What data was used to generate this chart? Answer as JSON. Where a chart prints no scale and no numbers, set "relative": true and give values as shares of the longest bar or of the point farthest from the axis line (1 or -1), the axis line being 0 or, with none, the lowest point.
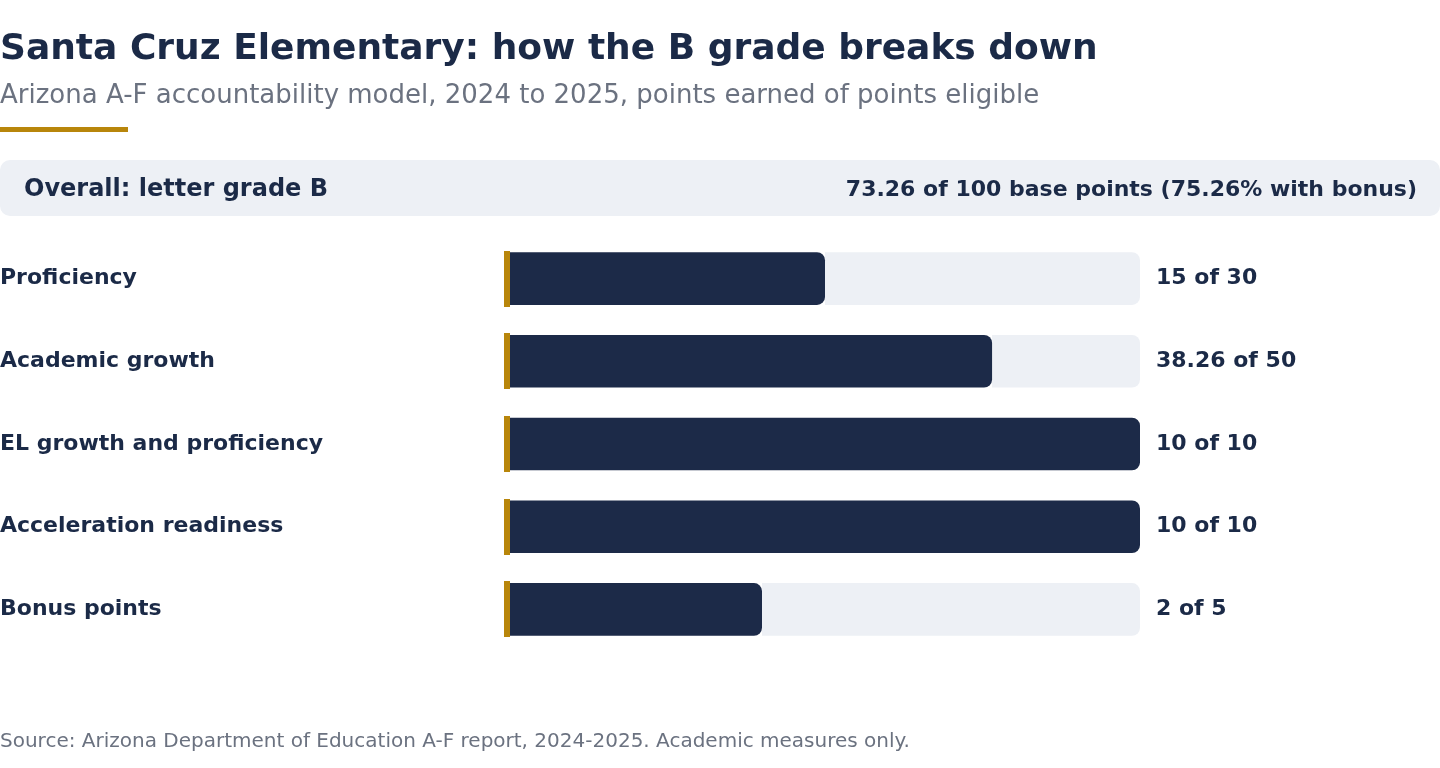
{
  "chart_data": {
    "type": "bar",
    "orientation": "horizontal",
    "stacked": true,
    "relative": true,
    "legend": false,
    "title": "Santa Cruz Elementary: how the B grade breaks down",
    "subtitle": "Arizona A-F accountability model, 2024 to 2025, points earned of points eligible",
    "annotations": [
      "Overall: letter grade B",
      "73.26 of 100 base points (75.26% with bonus)",
      "Source: Arizona Department of Education A-F report, 2024-2025. Academic measures only.",
      "15 of 30",
      "38.26 of 50",
      "10 of 10",
      "10 of 10",
      "2 of 5"
    ],
    "categories": [
      "Proficiency",
      "Academic growth",
      "EL growth and proficiency",
      "Acceleration readiness",
      "Bonus points"
    ],
    "series": [
      {
        "color": "#1c2a48",
        "values": [
          0.5,
          0.7652,
          1,
          1,
          0.4
        ]
      },
      {
        "color": "#edf0f5",
        "values": [
          0.5,
          0.2348,
          0,
          0,
          0.6
        ]
      }
    ]
  }
}
